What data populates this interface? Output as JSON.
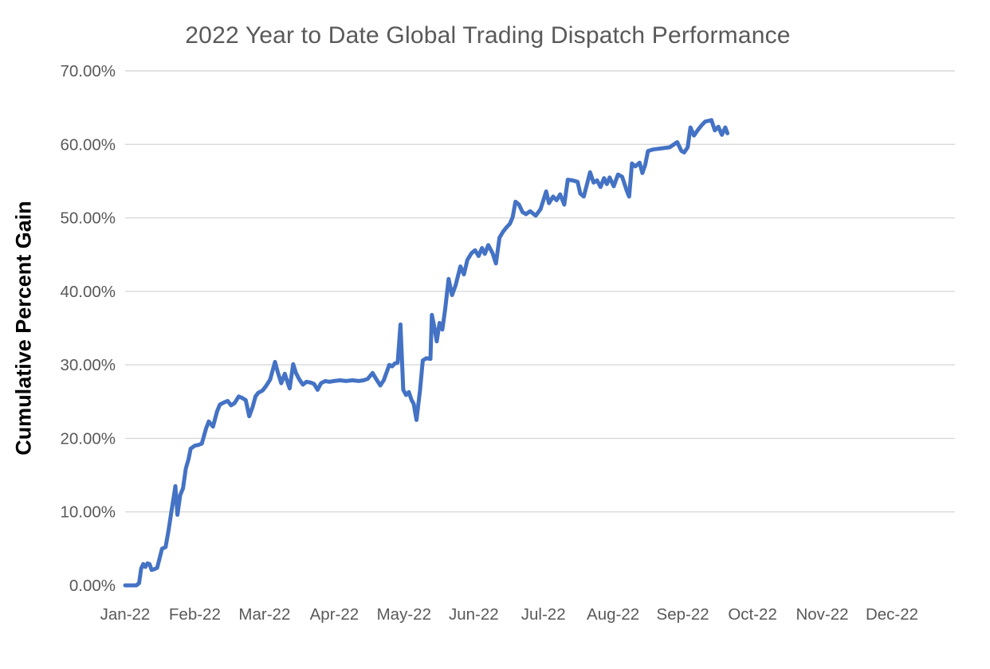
{
  "chart_data": {
    "type": "line",
    "title": "2022 Year to Date Global Trading Dispatch Performance",
    "xlabel": "",
    "ylabel": "Cumulative Percent Gain",
    "x_tick_labels": [
      "Jan-22",
      "Feb-22",
      "Mar-22",
      "Apr-22",
      "May-22",
      "Jun-22",
      "Jul-22",
      "Aug-22",
      "Sep-22",
      "Oct-22",
      "Nov-22",
      "Dec-22"
    ],
    "y_tick_labels": [
      "0.00%",
      "10.00%",
      "20.00%",
      "30.00%",
      "40.00%",
      "50.00%",
      "60.00%",
      "70.00%"
    ],
    "ylim_percent": [
      0,
      70
    ],
    "y_gridlines_percent": [
      10,
      20,
      30,
      40,
      50,
      60,
      70
    ],
    "grid": "horizontal-only",
    "legend": "none",
    "series": [
      {
        "name": "Cumulative Percent Gain",
        "color": "#4472C4",
        "x_unit": "months_since_2022-01-01",
        "y_unit": "percent",
        "points": [
          [
            0.0,
            0.0
          ],
          [
            0.08,
            0.0
          ],
          [
            0.16,
            0.0
          ],
          [
            0.2,
            0.3
          ],
          [
            0.23,
            2.3
          ],
          [
            0.26,
            2.9
          ],
          [
            0.29,
            2.5
          ],
          [
            0.32,
            3.0
          ],
          [
            0.35,
            2.9
          ],
          [
            0.38,
            2.1
          ],
          [
            0.42,
            2.2
          ],
          [
            0.46,
            2.4
          ],
          [
            0.53,
            5.0
          ],
          [
            0.58,
            5.2
          ],
          [
            0.62,
            7.3
          ],
          [
            0.66,
            9.8
          ],
          [
            0.7,
            12.2
          ],
          [
            0.72,
            13.5
          ],
          [
            0.75,
            9.6
          ],
          [
            0.79,
            12.3
          ],
          [
            0.83,
            13.2
          ],
          [
            0.87,
            15.9
          ],
          [
            0.91,
            17.2
          ],
          [
            0.94,
            18.6
          ],
          [
            1.0,
            19.0
          ],
          [
            1.05,
            19.1
          ],
          [
            1.1,
            19.3
          ],
          [
            1.16,
            21.3
          ],
          [
            1.2,
            22.3
          ],
          [
            1.26,
            21.6
          ],
          [
            1.32,
            23.7
          ],
          [
            1.36,
            24.6
          ],
          [
            1.42,
            24.9
          ],
          [
            1.47,
            25.1
          ],
          [
            1.52,
            24.5
          ],
          [
            1.57,
            24.8
          ],
          [
            1.63,
            25.7
          ],
          [
            1.68,
            25.5
          ],
          [
            1.73,
            25.2
          ],
          [
            1.78,
            23.0
          ],
          [
            1.83,
            24.3
          ],
          [
            1.87,
            25.7
          ],
          [
            1.91,
            26.2
          ],
          [
            1.97,
            26.5
          ],
          [
            2.02,
            27.1
          ],
          [
            2.08,
            28.0
          ],
          [
            2.15,
            30.4
          ],
          [
            2.19,
            29.0
          ],
          [
            2.24,
            27.5
          ],
          [
            2.29,
            28.8
          ],
          [
            2.33,
            27.6
          ],
          [
            2.36,
            26.8
          ],
          [
            2.41,
            30.1
          ],
          [
            2.45,
            28.9
          ],
          [
            2.5,
            28.0
          ],
          [
            2.55,
            27.3
          ],
          [
            2.6,
            27.7
          ],
          [
            2.66,
            27.6
          ],
          [
            2.71,
            27.4
          ],
          [
            2.76,
            26.6
          ],
          [
            2.81,
            27.5
          ],
          [
            2.87,
            27.8
          ],
          [
            2.93,
            27.7
          ],
          [
            3.0,
            27.8
          ],
          [
            3.08,
            27.9
          ],
          [
            3.17,
            27.8
          ],
          [
            3.26,
            27.9
          ],
          [
            3.35,
            27.8
          ],
          [
            3.42,
            27.9
          ],
          [
            3.48,
            28.1
          ],
          [
            3.55,
            28.9
          ],
          [
            3.6,
            28.1
          ],
          [
            3.66,
            27.2
          ],
          [
            3.71,
            27.9
          ],
          [
            3.79,
            30.0
          ],
          [
            3.83,
            29.8
          ],
          [
            3.87,
            30.2
          ],
          [
            3.91,
            30.3
          ],
          [
            3.95,
            35.5
          ],
          [
            3.99,
            26.6
          ],
          [
            4.03,
            25.9
          ],
          [
            4.07,
            26.3
          ],
          [
            4.11,
            25.2
          ],
          [
            4.14,
            24.7
          ],
          [
            4.18,
            22.5
          ],
          [
            4.23,
            26.5
          ],
          [
            4.27,
            30.6
          ],
          [
            4.32,
            30.9
          ],
          [
            4.38,
            30.8
          ],
          [
            4.4,
            36.8
          ],
          [
            4.44,
            34.9
          ],
          [
            4.47,
            33.2
          ],
          [
            4.51,
            35.7
          ],
          [
            4.55,
            34.8
          ],
          [
            4.59,
            37.5
          ],
          [
            4.64,
            41.7
          ],
          [
            4.69,
            39.5
          ],
          [
            4.74,
            40.8
          ],
          [
            4.81,
            43.4
          ],
          [
            4.86,
            42.3
          ],
          [
            4.91,
            44.3
          ],
          [
            4.97,
            45.2
          ],
          [
            5.02,
            45.6
          ],
          [
            5.07,
            44.8
          ],
          [
            5.12,
            45.9
          ],
          [
            5.16,
            45.1
          ],
          [
            5.21,
            46.3
          ],
          [
            5.27,
            45.2
          ],
          [
            5.32,
            43.8
          ],
          [
            5.37,
            47.3
          ],
          [
            5.42,
            48.1
          ],
          [
            5.47,
            48.7
          ],
          [
            5.52,
            49.2
          ],
          [
            5.56,
            50.1
          ],
          [
            5.6,
            52.2
          ],
          [
            5.65,
            51.8
          ],
          [
            5.7,
            50.8
          ],
          [
            5.75,
            50.5
          ],
          [
            5.81,
            50.9
          ],
          [
            5.89,
            50.3
          ],
          [
            5.96,
            51.2
          ],
          [
            6.04,
            53.6
          ],
          [
            6.08,
            52.0
          ],
          [
            6.14,
            52.9
          ],
          [
            6.19,
            52.4
          ],
          [
            6.24,
            53.2
          ],
          [
            6.3,
            51.8
          ],
          [
            6.35,
            55.2
          ],
          [
            6.42,
            55.1
          ],
          [
            6.49,
            54.9
          ],
          [
            6.53,
            53.3
          ],
          [
            6.58,
            52.9
          ],
          [
            6.67,
            56.2
          ],
          [
            6.72,
            54.8
          ],
          [
            6.77,
            55.1
          ],
          [
            6.82,
            54.2
          ],
          [
            6.87,
            55.4
          ],
          [
            6.91,
            54.6
          ],
          [
            6.95,
            55.5
          ],
          [
            7.01,
            54.3
          ],
          [
            7.07,
            55.9
          ],
          [
            7.13,
            55.6
          ],
          [
            7.2,
            53.6
          ],
          [
            7.23,
            52.9
          ],
          [
            7.27,
            57.4
          ],
          [
            7.32,
            57.0
          ],
          [
            7.38,
            57.5
          ],
          [
            7.42,
            56.1
          ],
          [
            7.46,
            57.2
          ],
          [
            7.5,
            59.1
          ],
          [
            7.57,
            59.3
          ],
          [
            7.65,
            59.4
          ],
          [
            7.73,
            59.5
          ],
          [
            7.81,
            59.6
          ],
          [
            7.92,
            60.3
          ],
          [
            7.98,
            59.1
          ],
          [
            8.02,
            58.9
          ],
          [
            8.07,
            59.6
          ],
          [
            8.11,
            62.3
          ],
          [
            8.16,
            61.2
          ],
          [
            8.22,
            62.0
          ],
          [
            8.27,
            62.6
          ],
          [
            8.32,
            63.1
          ],
          [
            8.41,
            63.3
          ],
          [
            8.46,
            61.9
          ],
          [
            8.51,
            62.4
          ],
          [
            8.56,
            61.3
          ],
          [
            8.61,
            62.3
          ],
          [
            8.64,
            61.5
          ]
        ]
      }
    ]
  },
  "colors": {
    "background": "#FFFFFF",
    "title_text": "#595959",
    "axis_tick_text": "#595959",
    "y_axis_title_text": "#000000",
    "gridline": "#D9D9D9",
    "line": "#4472C4"
  }
}
